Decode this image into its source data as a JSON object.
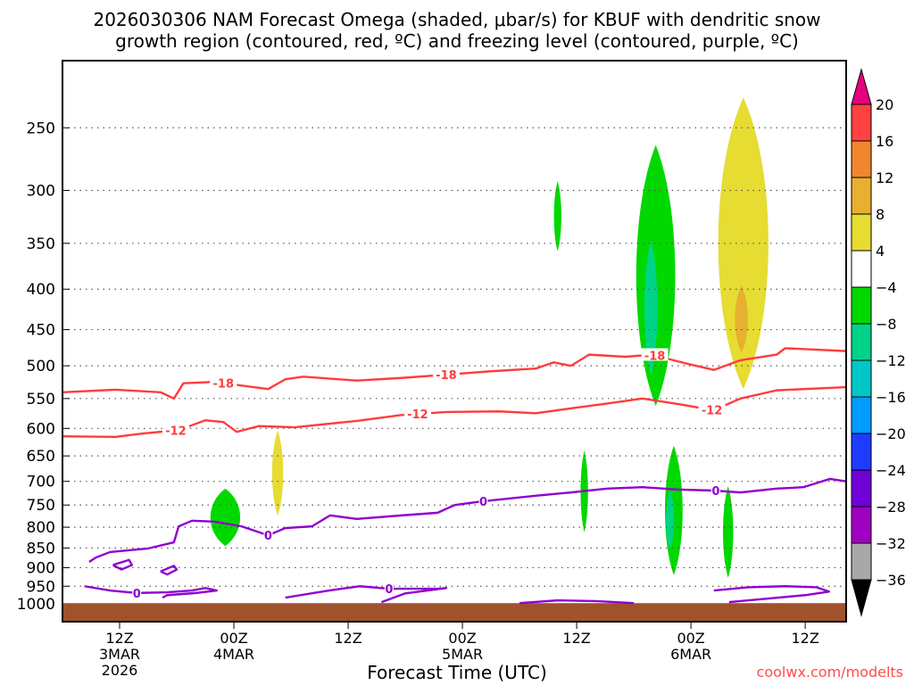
{
  "title": {
    "line1": "2026030306 NAM Forecast Omega (shaded, μbar/s) for KBUF with dendritic snow",
    "line2": "growth region (contoured, red, ºC) and freezing level (contoured, purple, ºC)"
  },
  "credit": "coolwx.com/modelts",
  "chart_data": {
    "type": "heatmap",
    "xlabel": "Forecast Time (UTC)",
    "ylabel": "",
    "x_units": "forecast hour",
    "xlim": [
      0,
      82.3
    ],
    "ylim_hPa": [
      206,
      1053
    ],
    "grid": true,
    "y_ticks": [
      250,
      300,
      350,
      400,
      450,
      500,
      550,
      600,
      650,
      700,
      750,
      800,
      850,
      900,
      950,
      1000
    ],
    "x_ticks": [
      {
        "hour": 6,
        "lines": [
          "12Z",
          "3MAR",
          "2026"
        ]
      },
      {
        "hour": 18,
        "lines": [
          "00Z",
          "4MAR"
        ]
      },
      {
        "hour": 30,
        "lines": [
          "12Z"
        ]
      },
      {
        "hour": 42,
        "lines": [
          "00Z",
          "5MAR"
        ]
      },
      {
        "hour": 54,
        "lines": [
          "12Z"
        ]
      },
      {
        "hour": 66,
        "lines": [
          "00Z",
          "6MAR"
        ]
      },
      {
        "hour": 78,
        "lines": [
          "12Z"
        ]
      }
    ],
    "colorbar": {
      "labels": [
        "20",
        "16",
        "12",
        "8",
        "4",
        "−4",
        "−8",
        "−12",
        "−16",
        "−20",
        "−24",
        "−28",
        "−32",
        "−36"
      ],
      "over_color": "#e6007e",
      "under_color": "#000000",
      "colors": [
        "#ff4242",
        "#f0862e",
        "#e6b030",
        "#e6dc32",
        "#ffffff",
        "#00d800",
        "#00d488",
        "#00c8c8",
        "#009cff",
        "#1e3cff",
        "#7000d8",
        "#a000c0",
        "#a8a8a8"
      ]
    },
    "omega_regions": [
      {
        "hour": 17.1,
        "half_width_h": 1.6,
        "p_top": 715,
        "p_bottom": 845,
        "omega": -6
      },
      {
        "hour": 22.6,
        "half_width_h": 0.6,
        "p_top": 604,
        "p_bottom": 773,
        "omega": 6
      },
      {
        "hour": 52.0,
        "half_width_h": 0.4,
        "p_top": 292,
        "p_bottom": 358,
        "omega": -6
      },
      {
        "hour": 62.3,
        "half_width_h": 2.1,
        "p_top": 263,
        "p_bottom": 562,
        "omega": -6
      },
      {
        "hour": 61.8,
        "half_width_h": 0.7,
        "p_top": 347,
        "p_bottom": 513,
        "omega": -10
      },
      {
        "hour": 71.5,
        "half_width_h": 2.7,
        "p_top": 229,
        "p_bottom": 535,
        "omega": 6
      },
      {
        "hour": 71.3,
        "half_width_h": 0.7,
        "p_top": 396,
        "p_bottom": 481,
        "omega": 10
      },
      {
        "hour": 54.8,
        "half_width_h": 0.4,
        "p_top": 640,
        "p_bottom": 812,
        "omega": -6
      },
      {
        "hour": 64.2,
        "half_width_h": 0.95,
        "p_top": 631,
        "p_bottom": 920,
        "omega": -6
      },
      {
        "hour": 63.8,
        "half_width_h": 0.45,
        "p_top": 719,
        "p_bottom": 851,
        "omega": -10
      },
      {
        "hour": 69.9,
        "half_width_h": 0.55,
        "p_top": 710,
        "p_bottom": 927,
        "omega": -6
      }
    ],
    "surface_pressure_hPa": 998,
    "contours": [
      {
        "name": "dgz-minus18",
        "label": "-18",
        "color": "#ff3c3c",
        "hours": [
          0,
          5.6,
          10.3,
          11.7,
          12.7,
          15.9,
          21.6,
          23.4,
          25.3,
          30.9,
          35.6,
          40.3,
          45,
          49.7,
          51.6,
          53.4,
          55.3,
          59.1,
          61.9,
          65.6,
          68.4,
          71.2,
          75,
          75.9,
          82.3
        ],
        "hPa": [
          540,
          536,
          540,
          550,
          526,
          524,
          535,
          520,
          516,
          522,
          518,
          513,
          508,
          504,
          495,
          500,
          484,
          487,
          484,
          497,
          506,
          492,
          484,
          475,
          479
        ],
        "label_hours": [
          16.9,
          40.3,
          62.2
        ]
      },
      {
        "name": "dgz-minus12",
        "label": "-12",
        "color": "#ff3c3c",
        "hours": [
          0,
          5.6,
          8.4,
          12.2,
          15,
          16.9,
          18.3,
          20.6,
          24.4,
          26.2,
          30.9,
          35.6,
          40.3,
          45.9,
          49.7,
          53.4,
          57.2,
          60.9,
          64.7,
          68.4,
          71.2,
          75,
          82.3
        ],
        "hPa": [
          614,
          615,
          609,
          603,
          586,
          589,
          606,
          596,
          598,
          595,
          587,
          577,
          572,
          571,
          574,
          566,
          558,
          550,
          559,
          569,
          550,
          537,
          532
        ],
        "label_hours": [
          11.9,
          37.3,
          68.2
        ]
      },
      {
        "name": "freezing-level",
        "label": "0",
        "color": "#9000d0",
        "hours": [
          2.8,
          3.5,
          5,
          9,
          11.7,
          12.2,
          13.6,
          15.9,
          18.8,
          21.6,
          23.4,
          26.2,
          28.1,
          30.9,
          35.6,
          39.4,
          41.2,
          44.1,
          49.7,
          53.4,
          57.2,
          60.9,
          64.7,
          68.4,
          71.2,
          75,
          77.8,
          80.6,
          82.3
        ],
        "hPa": [
          885,
          874,
          860,
          851,
          836,
          798,
          785,
          787,
          798,
          819,
          802,
          798,
          773,
          781,
          773,
          767,
          750,
          742,
          730,
          723,
          715,
          712,
          717,
          719,
          723,
          715,
          712,
          695,
          700
        ],
        "label_hours": [
          21.6,
          44.2,
          68.6
        ]
      },
      {
        "name": "freezing-level-low-1",
        "label": "0",
        "color": "#9000d0",
        "hours": [
          2.3,
          5,
          7.8,
          11,
          13.6,
          15,
          16.2,
          14,
          11,
          10.5
        ],
        "hPa": [
          950,
          962,
          969,
          967,
          962,
          955,
          962,
          969,
          975,
          982
        ],
        "label_hours": [
          7.8
        ]
      },
      {
        "name": "freezing-level-low-2",
        "label": "0",
        "color": "#9000d0",
        "hours": [
          23.4,
          25,
          28,
          31.2,
          34.3,
          39.4,
          40.3,
          36,
          33.5
        ],
        "hPa": [
          982,
          975,
          962,
          950,
          957,
          957,
          955,
          970,
          995
        ],
        "label_hours": [
          34.3
        ]
      },
      {
        "name": "freezing-level-low-3",
        "label": "",
        "color": "#9000d0",
        "hours": [
          48,
          52,
          56,
          60
        ],
        "hPa": [
          998,
          990,
          992,
          998
        ],
        "label_hours": []
      },
      {
        "name": "freezing-level-low-4",
        "label": "",
        "color": "#9000d0",
        "hours": [
          68.4,
          72,
          75.9,
          79.2,
          80.5,
          78,
          74,
          70
        ],
        "hPa": [
          962,
          953,
          950,
          953,
          965,
          975,
          985,
          995
        ],
        "label_hours": []
      },
      {
        "name": "freezing-level-loop-1",
        "label": "",
        "color": "#9000d0",
        "hours": [
          5.3,
          7,
          7.3,
          6.2,
          5.3
        ],
        "hPa": [
          893,
          880,
          893,
          905,
          893
        ],
        "label_hours": []
      },
      {
        "name": "freezing-level-loop-2",
        "label": "",
        "color": "#9000d0",
        "hours": [
          10.3,
          11.7,
          12,
          11,
          10.3
        ],
        "hPa": [
          910,
          895,
          905,
          918,
          910
        ],
        "label_hours": []
      }
    ]
  }
}
